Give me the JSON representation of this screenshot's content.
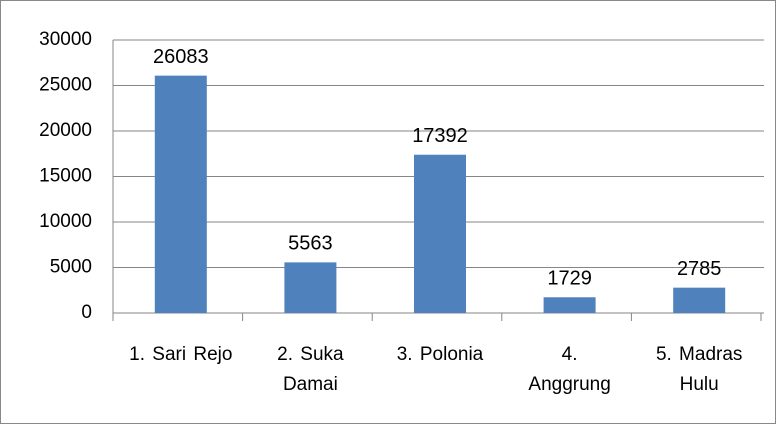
{
  "chart_data": {
    "type": "bar",
    "categories": [
      "1.  Sari Rejo",
      "2.  Suka Damai",
      "3.  Polonia",
      "4.  Anggrung",
      "5.  Madras Hulu"
    ],
    "values": [
      26083,
      5563,
      17392,
      1729,
      2785
    ],
    "color": "#4f81bd",
    "ylim": [
      0,
      30000
    ],
    "yticks": [
      0,
      5000,
      10000,
      15000,
      20000,
      25000,
      30000
    ],
    "grid": true
  }
}
